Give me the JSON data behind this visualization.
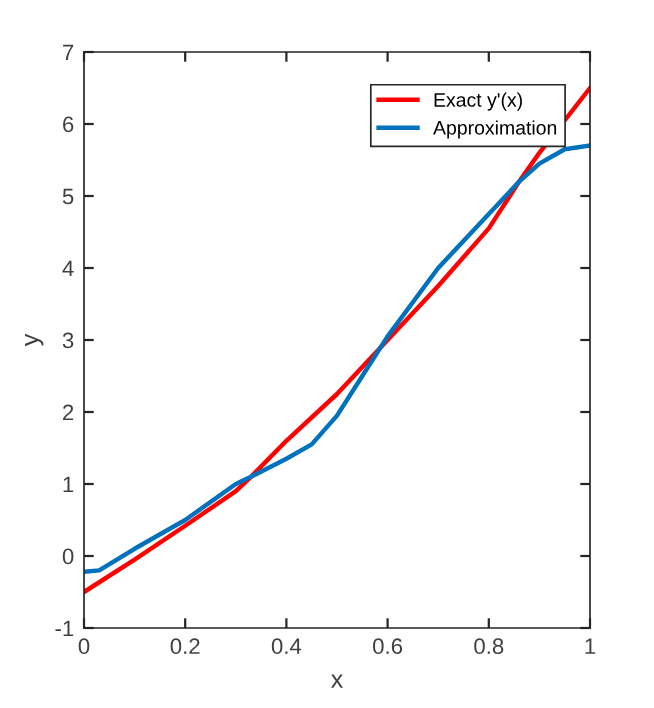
{
  "chart_data": {
    "type": "line",
    "xlabel": "x",
    "ylabel": "y",
    "xlim": [
      0,
      1
    ],
    "ylim": [
      -1,
      7
    ],
    "xticks": [
      0,
      0.2,
      0.4,
      0.6,
      0.8,
      1
    ],
    "yticks": [
      -1,
      0,
      1,
      2,
      3,
      4,
      5,
      6,
      7
    ],
    "grid": false,
    "legend": "top right",
    "line_style": "solid",
    "series": [
      {
        "name": "Exact y'(x)",
        "color": "#ff0000",
        "x": [
          0,
          0.1,
          0.2,
          0.3,
          0.33,
          0.4,
          0.5,
          0.6,
          0.7,
          0.8,
          0.86,
          0.9,
          1
        ],
        "values": [
          -0.5,
          -0.05,
          0.42,
          0.9,
          1.1,
          1.6,
          2.25,
          3.0,
          3.75,
          4.55,
          5.2,
          5.6,
          6.5
        ]
      },
      {
        "name": "Approximation",
        "color": "#0072bd",
        "x": [
          0,
          0.03,
          0.1,
          0.2,
          0.3,
          0.33,
          0.4,
          0.45,
          0.5,
          0.55,
          0.6,
          0.7,
          0.8,
          0.86,
          0.9,
          0.95,
          1
        ],
        "values": [
          -0.22,
          -0.2,
          0.1,
          0.5,
          1.0,
          1.1,
          1.35,
          1.55,
          1.95,
          2.5,
          3.05,
          4.0,
          4.75,
          5.2,
          5.45,
          5.65,
          5.7
        ]
      }
    ]
  }
}
